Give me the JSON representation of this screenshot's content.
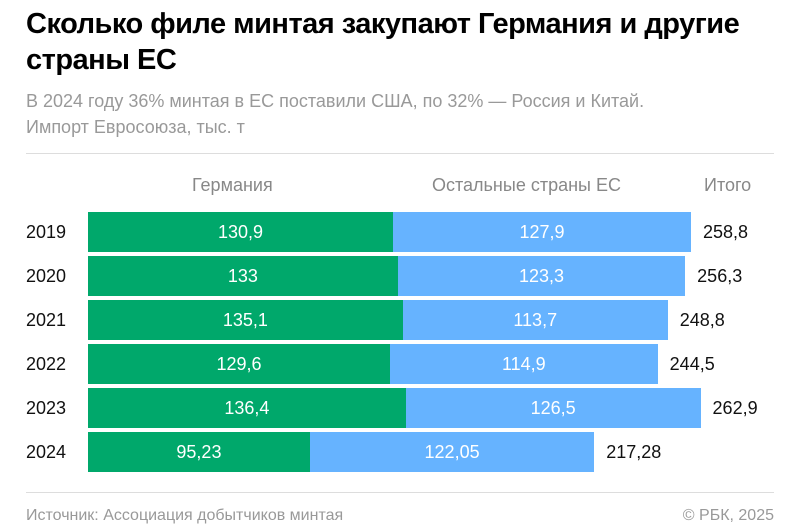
{
  "title": "Сколько филе минтая закупают Германия и другие страны ЕС",
  "subtitle_line1": "В 2024 году 36% минтая в ЕС поставили США, по 32% — Россия и Китай.",
  "subtitle_line2": "Импорт Евросоюза, тыс. т",
  "source": "Источник: Ассоциация добытчиков минтая",
  "copyright": "© РБК, 2025",
  "chart_data": {
    "type": "bar",
    "orientation": "horizontal",
    "stacked": true,
    "categories": [
      "2019",
      "2020",
      "2021",
      "2022",
      "2023",
      "2024"
    ],
    "series": [
      {
        "name": "Германия",
        "values": [
          130.9,
          133,
          135.1,
          129.6,
          136.4,
          95.23
        ],
        "labels": [
          "130,9",
          "133",
          "135,1",
          "129,6",
          "136,4",
          "95,23"
        ],
        "color": "#00a86b"
      },
      {
        "name": "Остальные страны ЕС",
        "values": [
          127.9,
          123.3,
          113.7,
          114.9,
          126.5,
          122.05
        ],
        "labels": [
          "127,9",
          "123,3",
          "113,7",
          "114,9",
          "126,5",
          "122,05"
        ],
        "color": "#66b3ff"
      }
    ],
    "totals_label": "Итого",
    "totals": [
      258.8,
      256.3,
      248.8,
      244.5,
      262.9,
      217.28
    ],
    "totals_labels": [
      "258,8",
      "256,3",
      "248,8",
      "244,5",
      "262,9",
      "217,28"
    ],
    "grid": false
  }
}
